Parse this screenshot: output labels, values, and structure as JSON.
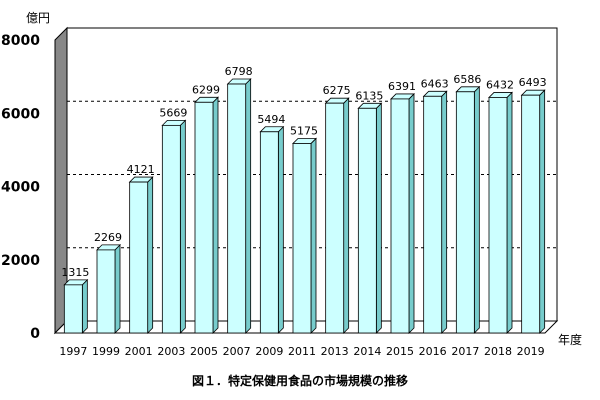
{
  "chart_data": {
    "type": "bar",
    "categories": [
      "1997",
      "1999",
      "2001",
      "2003",
      "2005",
      "2007",
      "2009",
      "2011",
      "2013",
      "2014",
      "2015",
      "2016",
      "2017",
      "2018",
      "2019"
    ],
    "values": [
      1315,
      2269,
      4121,
      5669,
      6299,
      6798,
      5494,
      5175,
      6275,
      6135,
      6391,
      6463,
      6586,
      6432,
      6493
    ],
    "ylabel": "億円",
    "xlabel": "年度",
    "ylim": [
      0,
      8000
    ],
    "yticks": [
      "8000",
      "6000",
      "4000",
      "2000",
      "0"
    ],
    "grid": "dashed",
    "bar_color": "#ccffff",
    "bar_side_color": "#77cccc",
    "wall_color": "#888888"
  },
  "caption": "図１．特定保健用食品の市場規模の推移"
}
